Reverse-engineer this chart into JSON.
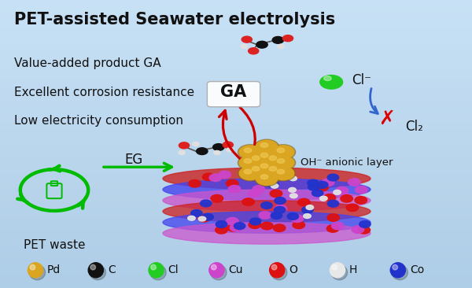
{
  "title": "PET-assisted Seawater electrolysis",
  "background_mid": "#87b8d8",
  "bullet_points": [
    "Value-added product GA",
    "Excellent corrosion resistance",
    "Low electricity consumption"
  ],
  "legend_items": [
    {
      "label": "Pd",
      "color": "#DAA520"
    },
    {
      "label": "C",
      "color": "#111111"
    },
    {
      "label": "Cl",
      "color": "#22cc22"
    },
    {
      "label": "Cu",
      "color": "#cc44cc"
    },
    {
      "label": "O",
      "color": "#dd1111"
    },
    {
      "label": "H",
      "color": "#e8e8e8"
    },
    {
      "label": "Co",
      "color": "#2233cc"
    }
  ],
  "labels": {
    "pet_waste": "PET waste",
    "eg": "EG",
    "ga": "GA",
    "cl_minus": "Cl⁻",
    "cl2": "Cl₂",
    "oh_layer": "OH⁻ anionic layer"
  },
  "title_fontsize": 15,
  "bullet_fontsize": 11,
  "label_fontsize": 12
}
